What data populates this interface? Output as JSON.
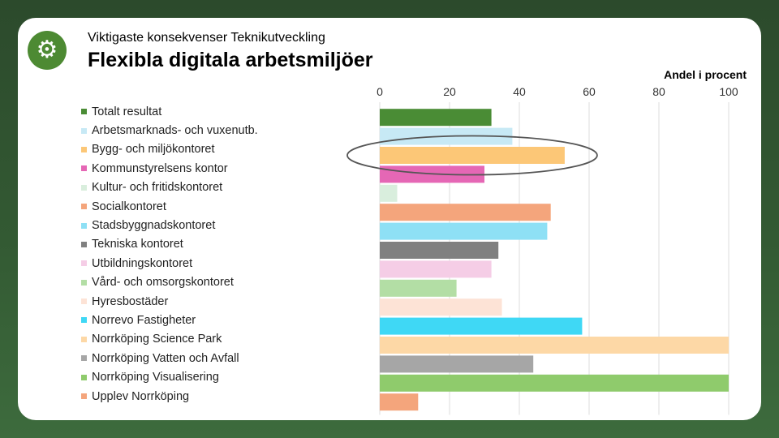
{
  "header": {
    "subtitle": "Viktigaste konsekvenser Teknikutveckling",
    "logo_icon": "gear-icon"
  },
  "chart_data": {
    "type": "bar",
    "orientation": "horizontal",
    "title": "Flexibla digitala arbetsmiljöer",
    "unit_label": "Andel i procent",
    "xlim": [
      0,
      100
    ],
    "ticks": [
      "0",
      "20",
      "40",
      "60",
      "80",
      "100"
    ],
    "grid": true,
    "legend": "left",
    "highlighted_category": "Bygg- och miljökontoret",
    "categories": [
      "Totalt resultat",
      "Arbetsmarknads- och vuxenutb.",
      "Bygg- och miljökontoret",
      "Kommunstyrelsens kontor",
      "Kultur- och fritidskontoret",
      "Socialkontoret",
      "Stadsbyggnadskontoret",
      "Tekniska kontoret",
      "Utbildningskontoret",
      "Vård- och omsorgskontoret",
      "Hyresbostäder",
      "Norrevo Fastigheter",
      "Norrköping Science Park",
      "Norrköping Vatten och Avfall",
      "Norrköping Visualisering",
      "Upplev Norrköping"
    ],
    "values": [
      32,
      38,
      53,
      30,
      5,
      49,
      48,
      34,
      32,
      22,
      35,
      58,
      100,
      44,
      100,
      11
    ],
    "colors": [
      "#4a8c35",
      "#c7e9f5",
      "#fcc777",
      "#e567b5",
      "#d9eedd",
      "#f4a57c",
      "#8ee0f5",
      "#808080",
      "#f5cde6",
      "#b3dea5",
      "#fde3d6",
      "#3fd8f5",
      "#fdd8a6",
      "#a6a6a6",
      "#8fcb6c",
      "#f4a57c"
    ]
  }
}
